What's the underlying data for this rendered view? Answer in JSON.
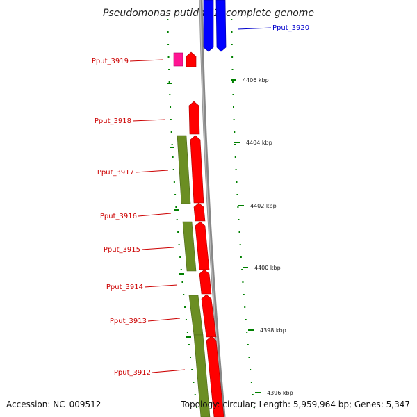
{
  "title": "Pseudomonas putida F1, complete genome",
  "footer": {
    "accession": "Accession: NC_009512",
    "summary": "Topology: circular; Length: 5,959,964 bp; Genes: 5,347"
  },
  "colors": {
    "forward_gene": "#ff0000",
    "reverse_gene": "#0000ff",
    "feature": "#6b8e23",
    "pink_feature": "#ff1493",
    "tick": "#008000",
    "backbone": "#888888",
    "label_red": "#cc0000",
    "label_blue": "#0000cc"
  },
  "gene_labels": [
    {
      "text": "Pput_3920",
      "color": "label_blue"
    },
    {
      "text": "Pput_3919",
      "color": "label_red"
    },
    {
      "text": "Pput_3918",
      "color": "label_red"
    },
    {
      "text": "Pput_3917",
      "color": "label_red"
    },
    {
      "text": "Pput_3916",
      "color": "label_red"
    },
    {
      "text": "Pput_3915",
      "color": "label_red"
    },
    {
      "text": "Pput_3914",
      "color": "label_red"
    },
    {
      "text": "Pput_3913",
      "color": "label_red"
    },
    {
      "text": "Pput_3912",
      "color": "label_red"
    }
  ],
  "ticks": [
    "4406 kbp",
    "4404 kbp",
    "4402 kbp",
    "4400 kbp",
    "4398 kbp",
    "4396 kbp"
  ]
}
